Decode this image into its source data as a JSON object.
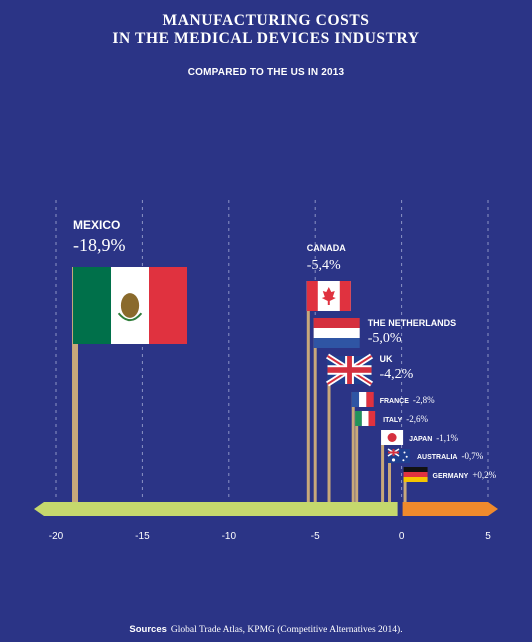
{
  "header": {
    "title_line1": "MANUFACTURING COSTS",
    "title_line2": "IN THE MEDICAL DEVICES INDUSTRY",
    "subtitle": "COMPARED TO THE US IN 2013"
  },
  "footer": {
    "sources_label": "Sources",
    "sources_text": "Global Trade Atlas, KPMG (Competitive Alternatives 2014)."
  },
  "colors": {
    "background": "#2b3486",
    "negative_bar": "#c5d86d",
    "positive_bar": "#f08a2c",
    "pole": "#c8a87a",
    "gridline": "#8c93c4"
  },
  "chart_data": {
    "type": "bar",
    "title": "MANUFACTURING COSTS IN THE MEDICAL DEVICES INDUSTRY",
    "subtitle": "COMPARED TO THE US IN 2013",
    "xlim": [
      -20,
      5
    ],
    "ticks": [
      -20,
      -15,
      -10,
      -5,
      0,
      5
    ],
    "grid": true,
    "series": [
      {
        "items": [
          {
            "country": "MEXICO",
            "label": "-18,9%",
            "value": -18.9,
            "flag": "mexico-flag"
          },
          {
            "country": "CANADA",
            "label": "-5,4%",
            "value": -5.4,
            "flag": "canada-flag"
          },
          {
            "country": "THE NETHERLANDS",
            "label": "-5,0%",
            "value": -5.0,
            "flag": "netherlands-flag"
          },
          {
            "country": "UK",
            "label": "-4,2%",
            "value": -4.2,
            "flag": "uk-flag"
          },
          {
            "country": "FRANCE",
            "label": "-2,8%",
            "value": -2.8,
            "flag": "france-flag"
          },
          {
            "country": "ITALY",
            "label": "-2,6%",
            "value": -2.6,
            "flag": "italy-flag"
          },
          {
            "country": "JAPAN",
            "label": "-1,1%",
            "value": -1.1,
            "flag": "japan-flag"
          },
          {
            "country": "AUSTRALIA",
            "label": "-0,7%",
            "value": -0.7,
            "flag": "australia-flag"
          },
          {
            "country": "GERMANY",
            "label": "+0,2%",
            "value": 0.2,
            "flag": "germany-flag"
          }
        ]
      }
    ]
  }
}
